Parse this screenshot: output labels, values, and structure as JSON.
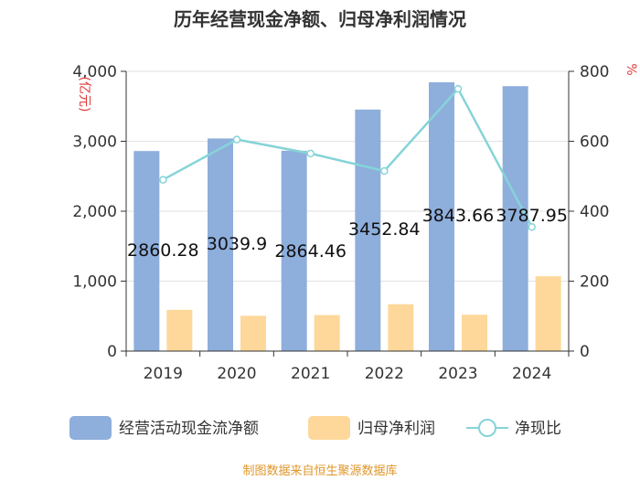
{
  "chart_data": {
    "type": "bar",
    "title": "历年经营现金净额、归母净利润情况",
    "categories": [
      "2019",
      "2020",
      "2021",
      "2022",
      "2023",
      "2024"
    ],
    "left_axis": {
      "unit_label": "(亿元)",
      "ylim": [
        0,
        4000
      ],
      "ticks": [
        0,
        1000,
        2000,
        3000,
        4000
      ],
      "tick_labels": [
        "0",
        "1,000",
        "2,000",
        "3,000",
        "4,000"
      ]
    },
    "right_axis": {
      "unit_label": "%",
      "ylim": [
        0,
        800
      ],
      "ticks": [
        0,
        200,
        400,
        600,
        800
      ],
      "tick_labels": [
        "0",
        "200",
        "400",
        "600",
        "800"
      ]
    },
    "series": [
      {
        "name": "经营活动现金流净额",
        "type": "bar",
        "axis": "left",
        "color": "#8eaedc",
        "values": [
          2860.28,
          3039.9,
          2864.46,
          3452.84,
          3843.66,
          3787.95
        ],
        "data_labels": [
          "2860.28",
          "3039.9",
          "2864.46",
          "3452.84",
          "3843.66",
          "3787.95"
        ]
      },
      {
        "name": "归母净利润",
        "type": "bar",
        "axis": "left",
        "color": "#fdd89a",
        "values": [
          590,
          505,
          515,
          670,
          520,
          1070
        ]
      },
      {
        "name": "净现比",
        "type": "line",
        "axis": "right",
        "color": "#86d4d8",
        "values": [
          490,
          605,
          565,
          515,
          750,
          355
        ]
      }
    ],
    "grid": true,
    "legend_position": "bottom",
    "source": "制图数据来自恒生聚源数据库"
  }
}
